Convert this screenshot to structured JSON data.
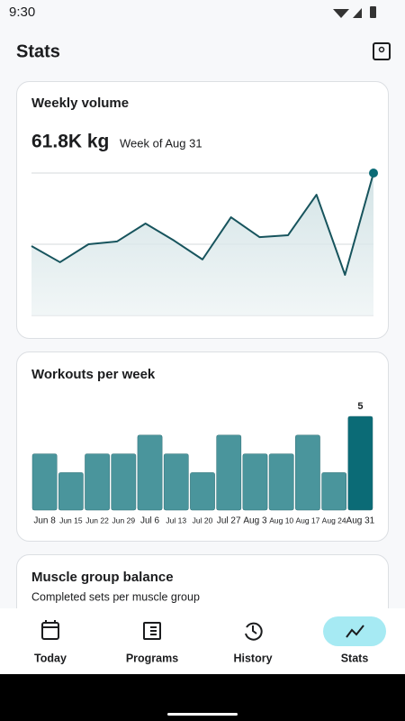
{
  "status_bar": {
    "time": "9:30"
  },
  "header": {
    "title": "Stats"
  },
  "chart_data": [
    {
      "type": "line",
      "title": "Weekly volume",
      "current_value": "61.8K kg",
      "current_period": "Week of Aug 31",
      "values": [
        30.1,
        23.1,
        30.9,
        32.1,
        39.9,
        32.5,
        24.3,
        42.6,
        34.0,
        34.8,
        52.4,
        17.6,
        61.8
      ],
      "ylim": [
        0,
        61.8
      ],
      "gridlines": [
        0,
        30.9,
        61.8
      ],
      "color": "#17545d",
      "grid": true
    },
    {
      "type": "bar",
      "title": "Workouts per week",
      "categories": [
        "Jun 8",
        "Jun 15",
        "Jun 22",
        "Jun 29",
        "Jul 6",
        "Jul 13",
        "Jul 20",
        "Jul 27",
        "Aug 3",
        "Aug 10",
        "Aug 17",
        "Aug 24",
        "Aug 31"
      ],
      "values": [
        3,
        2,
        3,
        3,
        4,
        3,
        2,
        4,
        3,
        3,
        4,
        2,
        5
      ],
      "colors": [
        "#4a959c",
        "#4a959c",
        "#4a959c",
        "#4a959c",
        "#4a959c",
        "#4a959c",
        "#4a959c",
        "#4a959c",
        "#4a959c",
        "#4a959c",
        "#4a959c",
        "#4a959c",
        "#0b6b76"
      ],
      "ylim": [
        0,
        5
      ]
    }
  ],
  "muscle_card": {
    "title": "Muscle group balance",
    "subtitle": "Completed sets per muscle group"
  },
  "nav": [
    {
      "label": "Today"
    },
    {
      "label": "Programs"
    },
    {
      "label": "History"
    },
    {
      "label": "Stats"
    }
  ]
}
